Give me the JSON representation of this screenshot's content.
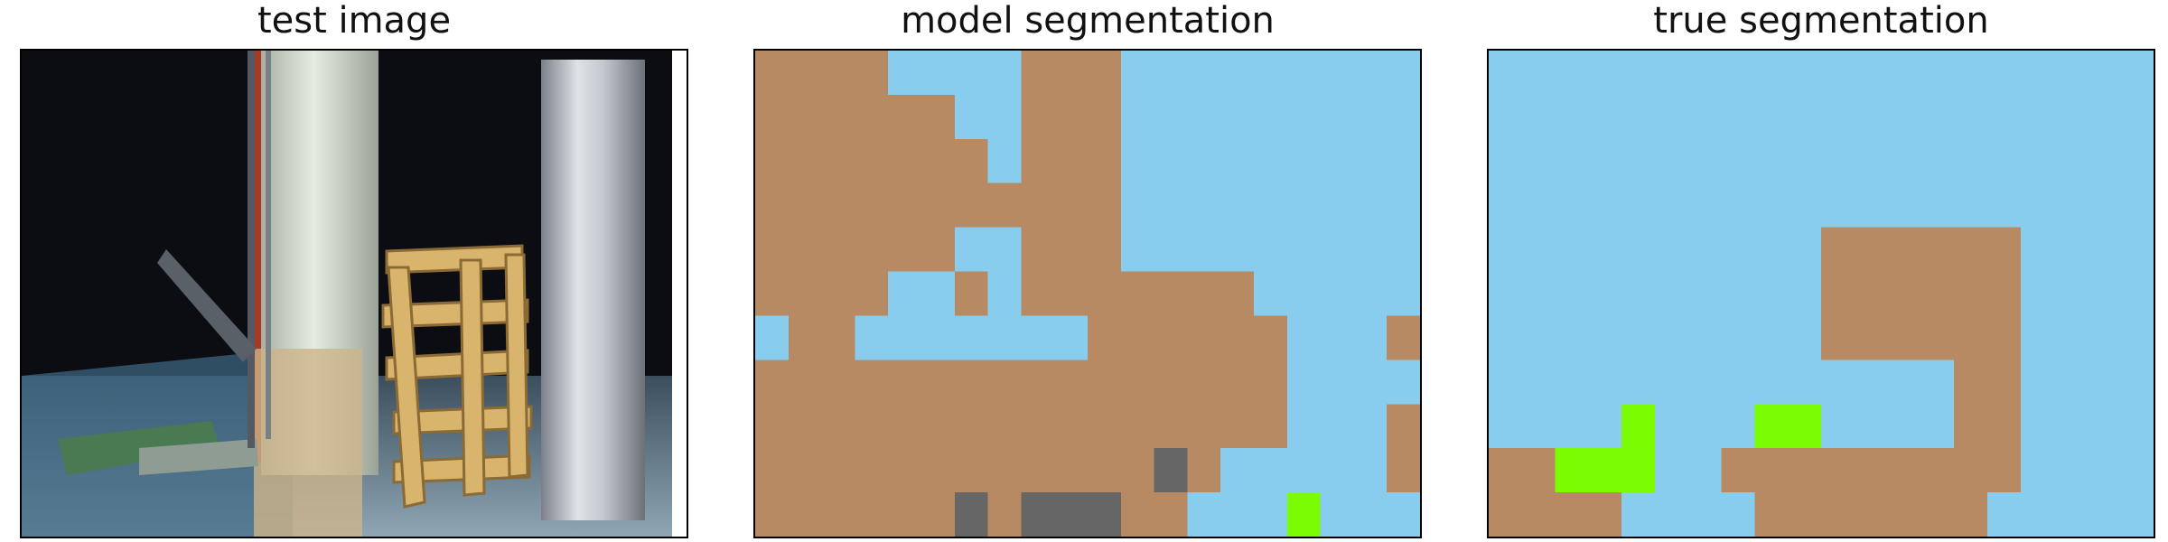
{
  "panels": [
    {
      "title": "test image"
    },
    {
      "title": "model segmentation"
    },
    {
      "title": "true segmentation"
    }
  ],
  "colors": {
    "floor": "#89CDEE",
    "structure": "#B88A63",
    "dark": "#666666",
    "bright": "#7CFC00"
  },
  "segmentation_grid": {
    "columns": 20,
    "rows": 11
  },
  "model_segmentation": [
    "SSSSFFFFSSSFFFFFFFFF",
    "SSSSSSFFSSSFFFFFFFFF",
    "SSSSSSSFSSSFFFFFFFFF",
    "SSSSSSSSSSSFFFFFFFFF",
    "SSSSSSFFSSSFFFFFFFFF",
    "SSSSFFSFSSSSSSSFFFFF",
    "FSSFFFFFFFSSSSSSFFFS",
    "SSSSSSSSSSSSSSSSFFFF",
    "SSSSSSSSSSSSSSSSFFFS",
    "SSSSSSSSSSSSDSFFFFFS",
    "SSSSSSDSDDDSSFFFBFFF"
  ],
  "true_segmentation": [
    "FFFFFFFFFFFFFFFFFFFF",
    "FFFFFFFFFFFFFFFFFFFF",
    "FFFFFFFFFFFFFFFFFFFF",
    "FFFFFFFFFFFFFFFFFFFF",
    "FFFFFFFFFFSSSSSSFFFF",
    "FFFFFFFFFFSSSSSSFFFF",
    "FFFFFFFFFFSSSSSSFFFF",
    "FFFFFFFFFFFFFFSSFFFF",
    "FFFFBFFFBBFFFFSSFFFF",
    "SSBBBFFSSSSSSSSSFFFF",
    "SSSSFFFFSSSSSSSFFFFF"
  ]
}
